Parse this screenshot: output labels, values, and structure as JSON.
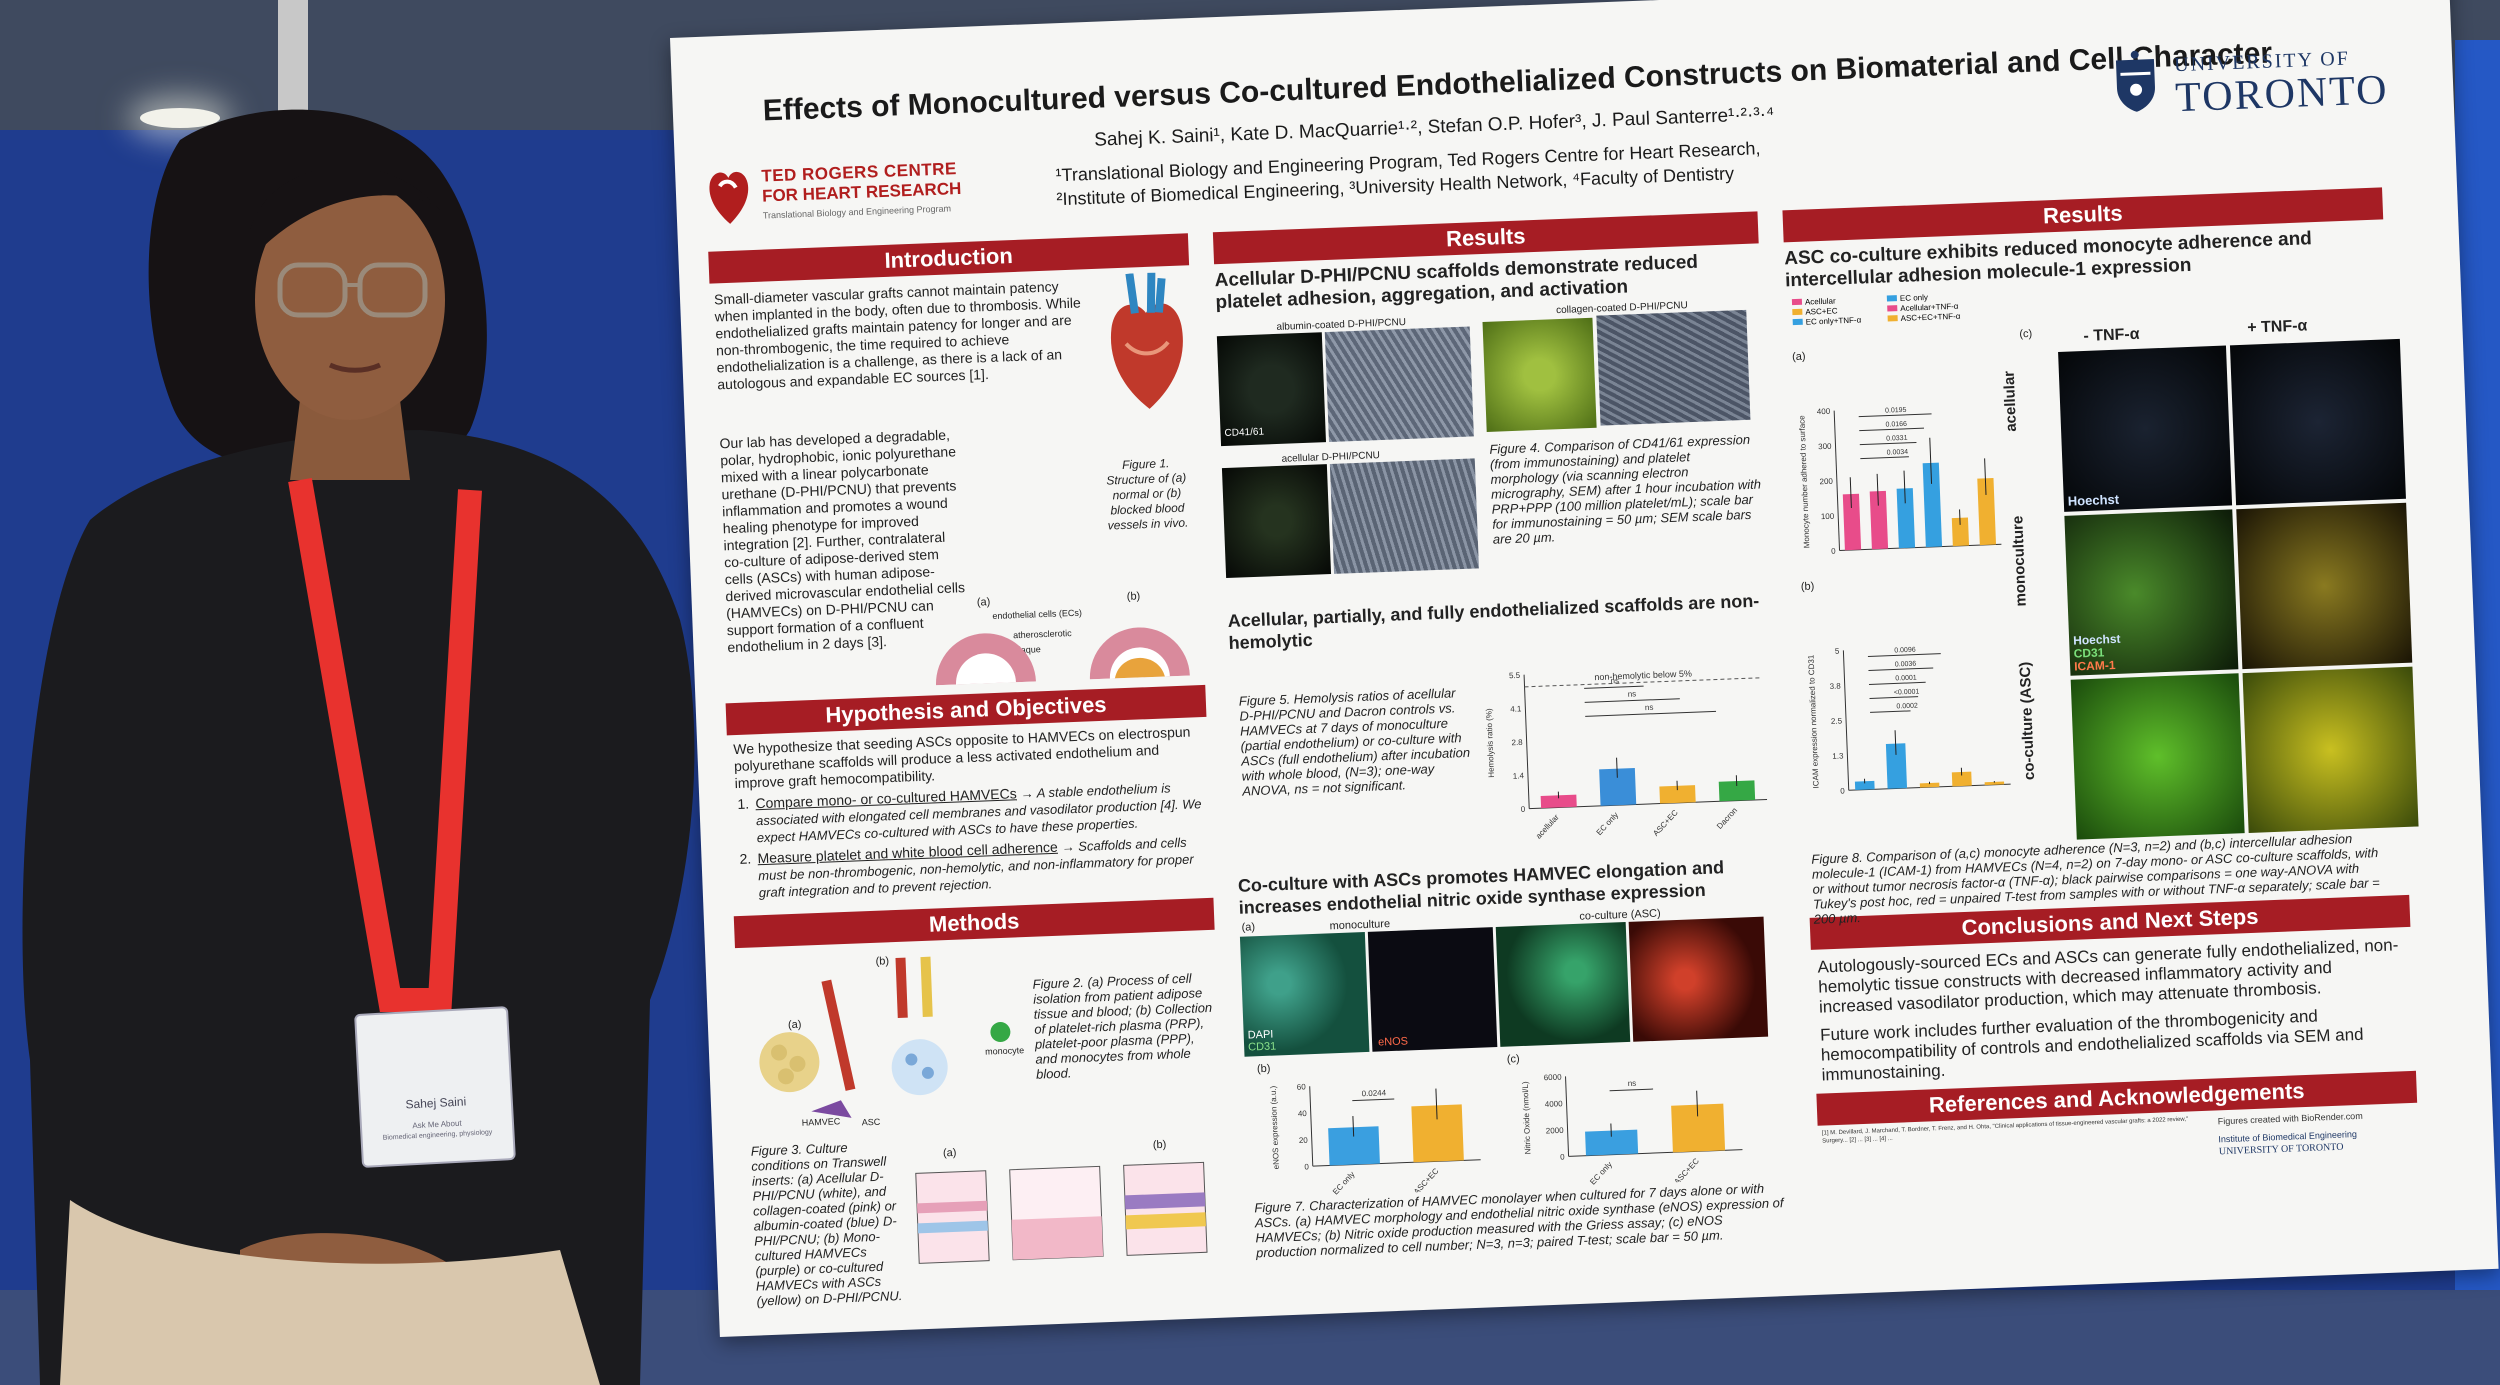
{
  "poster": {
    "title": "Effects of Monocultured versus Co-cultured Endothelialized Constructs on Biomaterial and Cell Character",
    "authors": "Sahej K. Saini¹, Kate D. MacQuarrie¹·², Stefan O.P. Hofer³, J. Paul Santerre¹·²·³·⁴",
    "affiliation_1": "¹Translational Biology and Engineering Program, Ted Rogers Centre for Heart Research,",
    "affiliation_2": "²Institute of Biomedical Engineering, ³University Health Network, ⁴Faculty of Dentistry",
    "logo_left_line1": "TED ROGERS CENTRE",
    "logo_left_line2": "FOR HEART RESEARCH",
    "logo_left_line3": "Translational Biology and Engineering Program",
    "logo_right_line1": "UNIVERSITY OF",
    "logo_right_line2": "TORONTO"
  },
  "intro": {
    "heading": "Introduction",
    "para1": "Small-diameter vascular grafts cannot maintain patency when implanted in the body, often due to thrombosis. While endothelialized grafts maintain patency for longer and are non-thrombogenic, the time required to achieve endothelialization is a challenge, as there is a lack of an autologous and expandable EC sources [1].",
    "para2": "Our lab has developed a degradable, polar, hydrophobic, ionic polyurethane mixed with a linear polycarbonate urethane (D-PHI/PCNU) that prevents inflammation and promotes a wound healing phenotype for improved integration [2]. Further, contralateral co-culture of adipose-derived stem cells (ASCs) with human adipose-derived microvascular endothelial cells (HAMVECs) on D-PHI/PCNU can support formation of a confluent endothelium in 2 days [3].",
    "fig1_caption": "Figure 1. Structure of (a) normal or (b) blocked blood vessels in vivo.",
    "fig1_label_ec": "endothelial cells (ECs)",
    "fig1_label_plaque": "atherosclerotic plaque",
    "fig1_a": "(a)",
    "fig1_b": "(b)"
  },
  "hypothesis": {
    "heading": "Hypothesis and Objectives",
    "text": "We hypothesize that seeding ASCs opposite to HAMVECs on electrospun polyurethane scaffolds will produce a less activated endothelium and improve graft hemocompatibility.",
    "obj1_title": "Compare mono- or co-cultured HAMVECs",
    "obj1_text": "→ A stable endothelium is associated with elongated cell membranes and vasodilator production [4]. We expect HAMVECs co-cultured with ASCs to have these properties.",
    "obj2_title": "Measure platelet and white blood cell adherence",
    "obj2_text": "→ Scaffolds and cells must be non-thrombogenic, non-hemolytic, and non-inflammatory for proper graft integration and to prevent rejection."
  },
  "methods": {
    "heading": "Methods",
    "fig2_caption": "Figure 2. (a) Process of cell isolation from patient adipose tissue and blood; (b) Collection of platelet-rich plasma (PRP), platelet-poor plasma (PPP), and monocytes from whole blood.",
    "fig3_caption": "Figure 3. Culture conditions on Transwell inserts: (a) Acellular D-PHI/PCNU (white), and collagen-coated (pink) or albumin-coated (blue) D-PHI/PCNU; (b) Mono-cultured HAMVECs (purple) or co-cultured HAMVECs with ASCs (yellow) on D-PHI/PCNU.",
    "label_a": "(a)",
    "label_b": "(b)",
    "label_monocyte": "monocyte",
    "label_hamvec": "HAMVEC",
    "label_asc": "ASC"
  },
  "results_mid": {
    "heading": "Results",
    "sub1": "Acellular D-PHI/PCNU scaffolds demonstrate reduced platelet adhesion, aggregation, and activation",
    "label_albumin": "albumin-coated D-PHI/PCNU",
    "label_collagen": "collagen-coated D-PHI/PCNU",
    "label_acellular": "acellular D-PHI/PCNU",
    "label_cd41": "CD41/61",
    "fig4_caption": "Figure 4. Comparison of CD41/61 expression (from immunostaining) and platelet morphology (via scanning electron micrography, SEM) after 1 hour incubation with PRP+PPP (100 million platelet/mL); scale bar for immunostaining = 50 µm; SEM scale bars are 20 µm.",
    "sub2": "Acellular, partially, and fully endothelialized scaffolds are non-hemolytic",
    "fig5_caption": "Figure 5. Hemolysis ratios of acellular D-PHI/PCNU and Dacron controls vs. HAMVECs at 7 days of monoculture (partial endothelium) or co-culture with ASCs (full endothelium) after incubation with whole blood, (N=3); one-way ANOVA, ns = not significant.",
    "sub3": "Co-culture with ASCs promotes HAMVEC elongation and increases endothelial nitric oxide synthase expression",
    "label_monoculture": "monoculture",
    "label_coculture": "co-culture (ASC)",
    "label_dapi": "DAPI",
    "label_cd31": "CD31",
    "label_enos": "eNOS",
    "fig7_caption": "Figure 7. Characterization of HAMVEC monolayer when cultured for 7 days alone or with ASCs. (a) HAMVEC morphology and endothelial nitric oxide synthase (eNOS) expression of HAMVECs; (b) Nitric oxide production measured with the Griess assay; (c) eNOS production normalized to cell number; N=3, n=3; paired T-test; scale bar = 50 µm.",
    "label_fig7_a": "(a)",
    "label_fig7_b": "(b)",
    "label_fig7_c": "(c)"
  },
  "results_right": {
    "heading": "Results",
    "sub1": "ASC co-culture exhibits reduced monocyte adherence and intercellular adhesion molecule-1 expression",
    "label_a": "(a)",
    "label_b": "(b)",
    "label_c": "(c)",
    "label_minus_tnf": "- TNF-α",
    "label_plus_tnf": "+ TNF-α",
    "label_acellular": "acellular",
    "label_monoculture": "monoculture",
    "label_coculture": "co-culture (ASC)",
    "label_hoechst": "Hoechst",
    "label_cd31": "CD31",
    "label_icam": "ICAM-1",
    "fig8_caption": "Figure 8. Comparison of (a,c) monocyte adherence (N=3, n=2) and (b,c) intercellular adhesion molecule-1 (ICAM-1) from HAMVECs (N=4, n=2) on 7-day mono- or ASC co-culture scaffolds, with or without tumor necrosis factor-α (TNF-α); black pairwise comparisons = one way-ANOVA with Tukey's post hoc, red = unpaired T-test from samples with or without TNF-α separately; scale bar = 200 µm.",
    "legend": [
      "Acellular",
      "EC only",
      "ASC+EC",
      "Acellular+TNF-α",
      "EC only+TNF-α",
      "ASC+EC+TNF-α"
    ],
    "pvals_a": [
      "0.0195",
      "0.0166",
      "0.0331",
      "0.0034"
    ],
    "pvals_b": [
      "0.0096",
      "0.0036",
      "0.0001",
      "<0.0001",
      "0.0002"
    ],
    "ylabel_a": "Monocyte number adhered to surface",
    "ylabel_b": "ICAM expression normalized to CD31"
  },
  "conclusions": {
    "heading": "Conclusions and Next Steps",
    "para1": "Autologously-sourced ECs and ASCs can generate fully endothelialized, non-hemolytic tissue constructs with decreased inflammatory activity and increased vasodilator production, which may attenuate thrombosis.",
    "para2": "Future work includes further evaluation of the thrombogenicity and hemocompatibility of controls and endothelialized scaffolds via SEM and immunostaining."
  },
  "references": {
    "heading": "References and Acknowledgements",
    "biorender": "Figures created with BioRender.com",
    "ibme": "Institute of Biomedical Engineering",
    "uoft": "UNIVERSITY OF TORONTO",
    "text": "[1] M. Devillard, J. Marchand, T. Bordner, T. Frenz, and H. Ohta, \"Clinical applications of tissue-engineered vascular grafts: a 2022 review,\" Surgery... [2] ... [3] ... [4] ..."
  },
  "badge": {
    "name": "Sahej Saini",
    "line2": "Ask Me About",
    "line3": "Biomedical engineering, physiology"
  },
  "chart_data": [
    {
      "type": "bar",
      "title": "Hemolysis ratio",
      "categories": [
        "acellular",
        "EC only",
        "ASC+EC",
        "Dacron"
      ],
      "values": [
        0.5,
        1.5,
        0.7,
        0.8
      ],
      "ylabel": "Hemolysis ratio (%)",
      "ylim": [
        0,
        5.5
      ],
      "threshold_label": "non-hemolytic below 5%",
      "threshold": 5.0,
      "annotations": [
        "ns",
        "ns",
        "ns"
      ],
      "colors": [
        "#e84c8a",
        "#3a8ed8",
        "#f0b030",
        "#35a845"
      ]
    },
    {
      "type": "bar",
      "title": "eNOS expression",
      "categories": [
        "EC only",
        "ASC+EC"
      ],
      "values": [
        28,
        42
      ],
      "ylabel": "eNOS expression (a.u.)",
      "ylim": [
        0,
        60
      ],
      "annotations": [
        "0.0244"
      ],
      "colors": [
        "#3a9fe0",
        "#f0b030"
      ]
    },
    {
      "type": "bar",
      "title": "Nitric oxide",
      "categories": [
        "EC only",
        "ASC+EC"
      ],
      "values": [
        1800,
        3500
      ],
      "ylabel": "Nitric Oxide (nmol/L)",
      "ylim": [
        0,
        6000
      ],
      "annotations": [
        "ns"
      ],
      "colors": [
        "#3a9fe0",
        "#f0b030"
      ]
    },
    {
      "type": "bar",
      "title": "Monocyte adherence",
      "categories": [
        "Acellular",
        "EC only",
        "ASC+EC",
        "Acellular+TNF-α",
        "EC only+TNF-α",
        "ASC+EC+TNF-α"
      ],
      "values": [
        160,
        165,
        170,
        240,
        80,
        190
      ],
      "ylim": [
        0,
        400
      ],
      "colors": [
        "#e84c8a",
        "#e84c8a",
        "#35a0e0",
        "#35a0e0",
        "#f0b030",
        "#f0b030"
      ]
    },
    {
      "type": "bar",
      "title": "ICAM-1 expression",
      "categories": [
        "Acellular",
        "EC only",
        "ASC+EC",
        "EC only+TNF-α",
        "ASC+EC+TNF-α"
      ],
      "values": [
        0.3,
        1.6,
        0.15,
        0.5,
        0.1
      ],
      "ylim": [
        0,
        5
      ],
      "colors": [
        "#35a0e0",
        "#35a0e0",
        "#f0b030",
        "#f0b030",
        "#f0b030"
      ]
    }
  ]
}
